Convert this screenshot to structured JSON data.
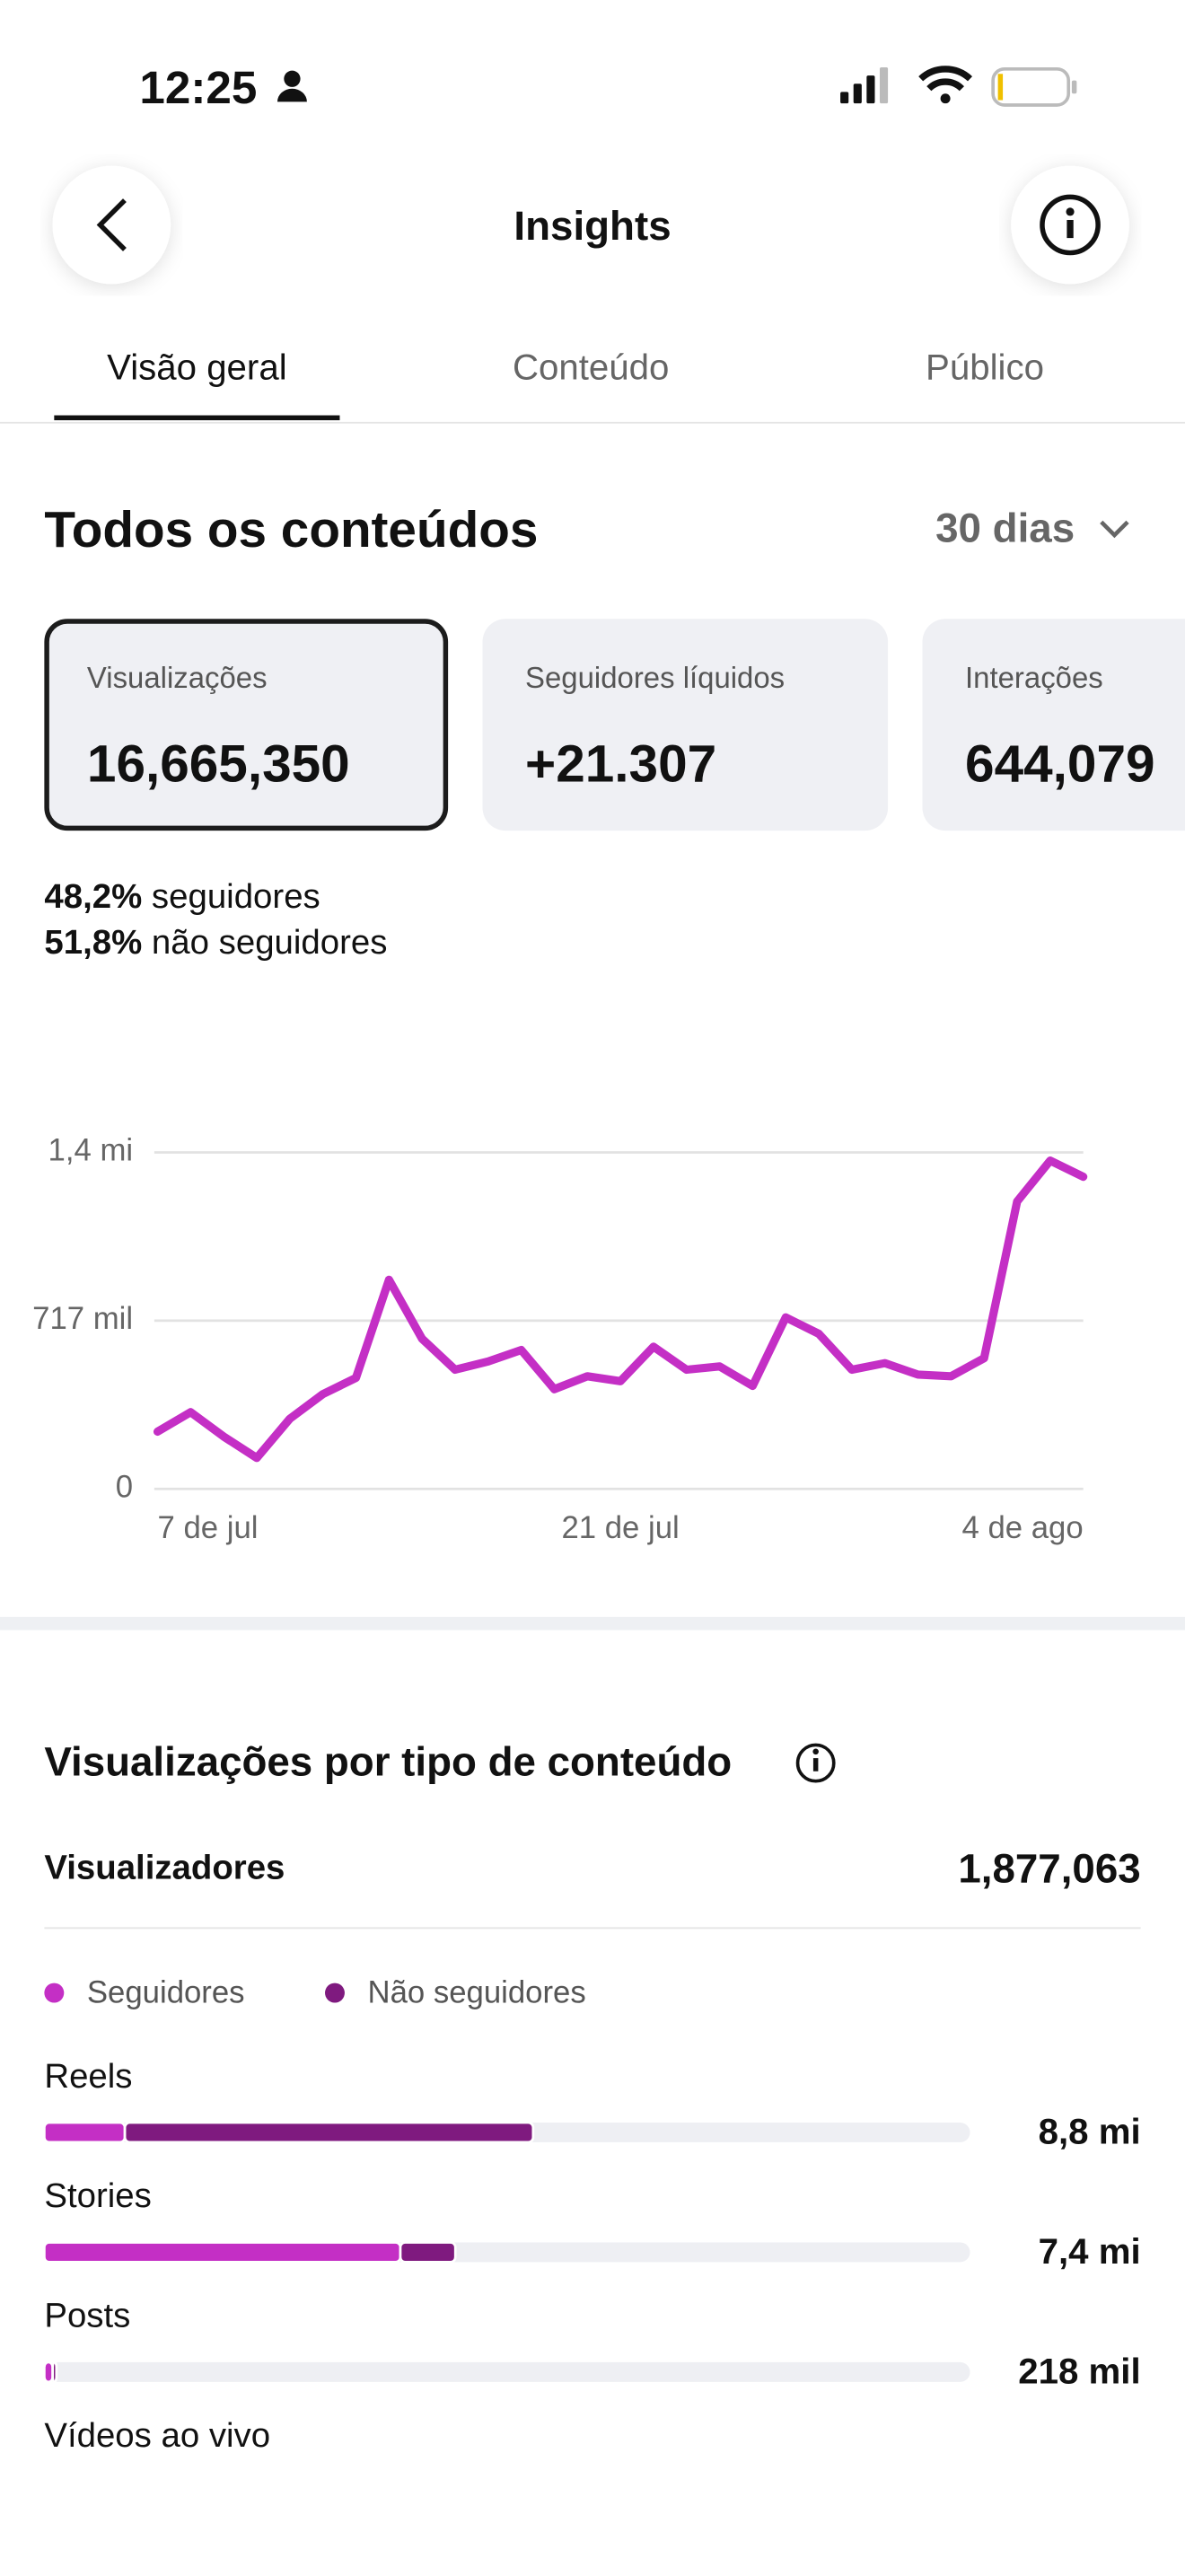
{
  "status": {
    "time": "12:25"
  },
  "header": {
    "title": "Insights"
  },
  "tabs": [
    "Visão geral",
    "Conteúdo",
    "Público"
  ],
  "section": {
    "title": "Todos os conteúdos",
    "period": "30 dias"
  },
  "cards": [
    {
      "label": "Visualizações",
      "value": "16,665,350"
    },
    {
      "label": "Seguidores líquidos",
      "value": "+21.307"
    },
    {
      "label": "Interações",
      "value": "644,079"
    }
  ],
  "split": [
    {
      "value": "48,2%",
      "label": "seguidores"
    },
    {
      "value": "51,8%",
      "label": "não seguidores"
    }
  ],
  "chart_data": [
    {
      "type": "line",
      "categories": [
        "7 de jul",
        null,
        null,
        null,
        null,
        null,
        null,
        null,
        null,
        null,
        null,
        null,
        null,
        null,
        "21 de jul",
        null,
        null,
        null,
        null,
        null,
        null,
        null,
        null,
        null,
        null,
        null,
        null,
        null,
        "4 de ago"
      ],
      "series": [
        {
          "color": "#c42fc5",
          "values": [
            244000,
            327000,
            223000,
            132000,
            299000,
            404000,
            473000,
            891000,
            640000,
            508000,
            543000,
            592000,
            425000,
            480000,
            459000,
            606000,
            508000,
            522000,
            439000,
            731000,
            661000,
            508000,
            536000,
            487000,
            480000,
            557000,
            1225000,
            1399000,
            1330000
          ]
        }
      ],
      "ylim": [
        0,
        1434000
      ],
      "yticks": [
        0,
        {
          "value": 717000,
          "label": "717 mil"
        },
        {
          "value": 1434000,
          "label": "1,4 mi"
        }
      ],
      "grid": true
    },
    {
      "type": "bar",
      "title": "Visualizações por tipo de conteúdo",
      "summary_label": "Visualizadores",
      "summary_value": "1,877,063",
      "categories": [
        "Reels",
        "Stories",
        "Posts",
        "Vídeos ao vivo"
      ],
      "series": [
        {
          "name": "Seguidores",
          "color": "#c42fc5",
          "values": [
            1450000,
            6410000,
            150000,
            null
          ]
        },
        {
          "name": "Não seguidores",
          "color": "#7f1a7f",
          "values": [
            7350000,
            990000,
            68000,
            null
          ]
        }
      ],
      "value_labels": [
        "8,8 mi",
        "7,4 mi",
        "218 mil",
        null
      ],
      "xlim": [
        0,
        16665350
      ],
      "stacked": true
    }
  ]
}
